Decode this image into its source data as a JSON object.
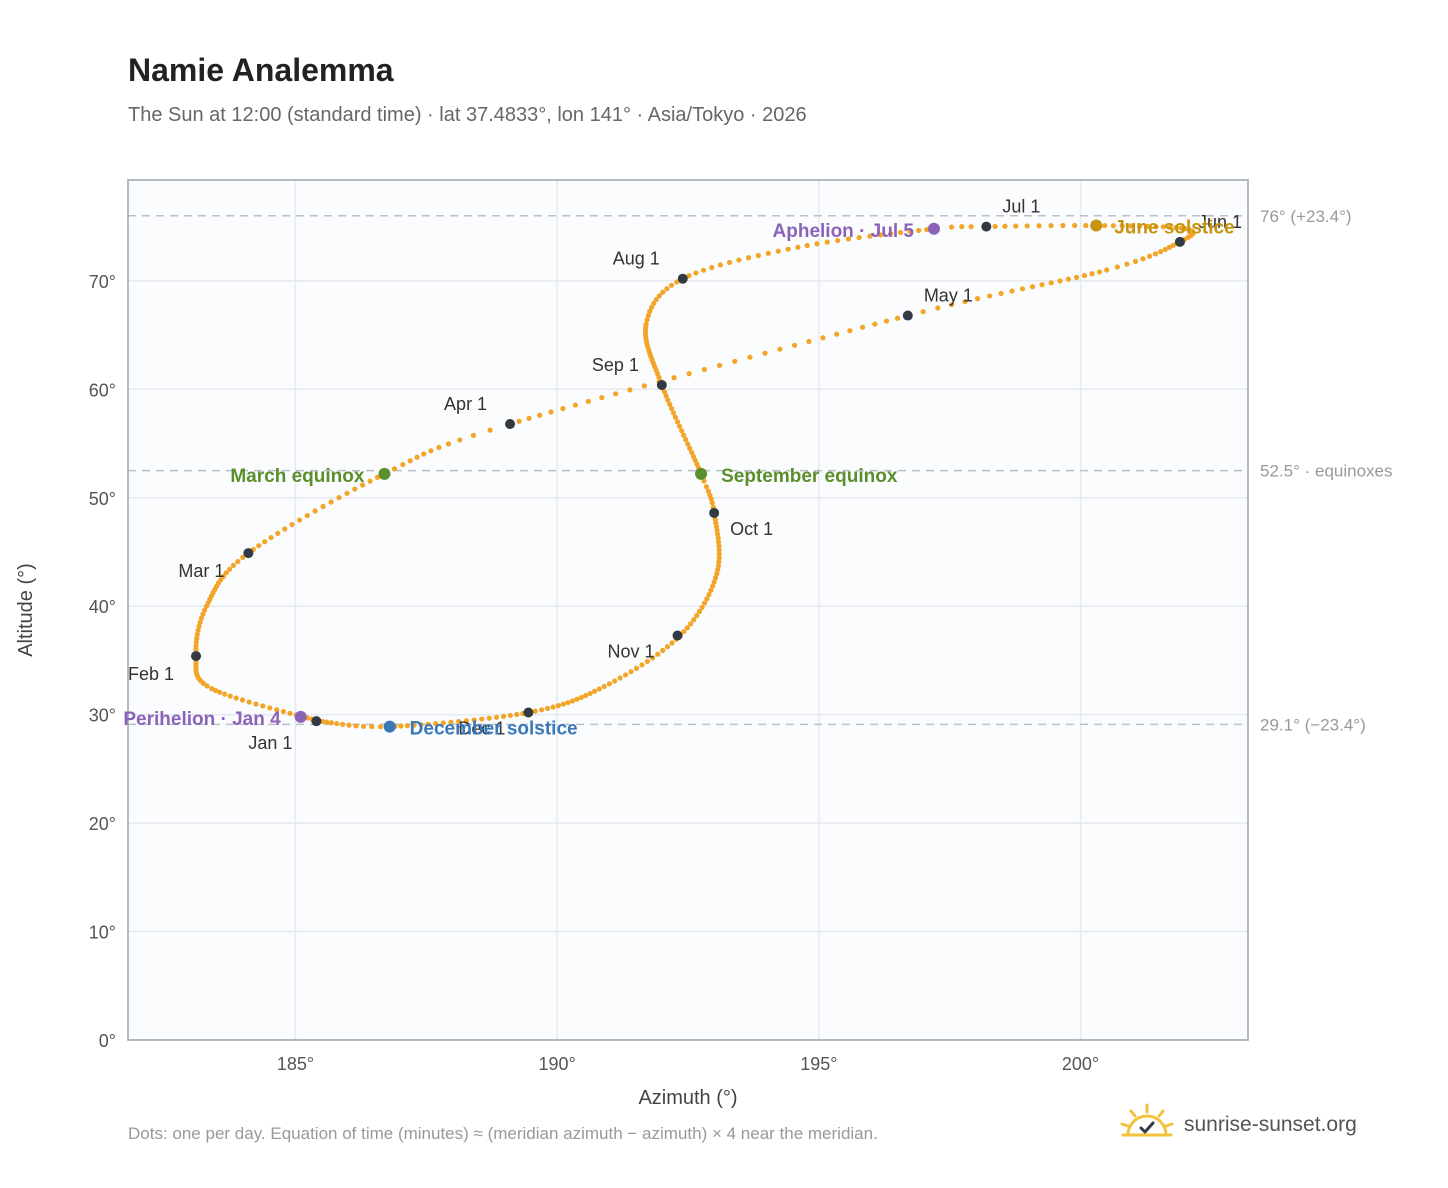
{
  "title": "Namie Analemma",
  "subtitle": "The Sun at 12:00 (standard time) · lat 37.4833°, lon 141° · Asia/Tokyo · 2026",
  "footnote": "Dots: one per day. Equation of time (minutes) ≈ (meridian azimuth − azimuth) × 4 near the meridian.",
  "brand": "sunrise-sunset.org",
  "chart_data": {
    "type": "scatter",
    "xlabel": "Azimuth (°)",
    "ylabel": "Altitude (°)",
    "xlim": [
      181.8,
      203.2
    ],
    "ylim": [
      0,
      79.3
    ],
    "xticks": [
      185,
      190,
      195,
      200
    ],
    "yticks": [
      0,
      10,
      20,
      30,
      40,
      50,
      60,
      70
    ],
    "grid": true,
    "reference_lines": [
      {
        "y": 76.0,
        "label": "76° (+23.4°)"
      },
      {
        "y": 52.5,
        "label": "52.5° · equinoxes"
      },
      {
        "y": 29.1,
        "label": "29.1° (−23.4°)"
      }
    ],
    "path_keypoints": [
      {
        "day": 1,
        "az": 185.45,
        "alt": 29.4
      },
      {
        "day": 20,
        "az": 183.4,
        "alt": 32.4
      },
      {
        "day": 32,
        "az": 183.1,
        "alt": 35.4
      },
      {
        "day": 45,
        "az": 183.3,
        "alt": 40.0
      },
      {
        "day": 60,
        "az": 184.1,
        "alt": 44.9
      },
      {
        "day": 79,
        "az": 186.7,
        "alt": 52.2
      },
      {
        "day": 91,
        "az": 189.1,
        "alt": 56.8
      },
      {
        "day": 121,
        "az": 196.7,
        "alt": 66.8
      },
      {
        "day": 140,
        "az": 200.5,
        "alt": 71.0
      },
      {
        "day": 152,
        "az": 201.9,
        "alt": 73.6
      },
      {
        "day": 160,
        "az": 202.0,
        "alt": 74.8
      },
      {
        "day": 172,
        "az": 200.3,
        "alt": 75.1
      },
      {
        "day": 182,
        "az": 198.2,
        "alt": 75.0
      },
      {
        "day": 186,
        "az": 197.2,
        "alt": 74.8
      },
      {
        "day": 200,
        "az": 194.6,
        "alt": 73.1
      },
      {
        "day": 213,
        "az": 192.4,
        "alt": 70.2
      },
      {
        "day": 225,
        "az": 191.7,
        "alt": 66.0
      },
      {
        "day": 244,
        "az": 192.0,
        "alt": 60.4
      },
      {
        "day": 266,
        "az": 192.75,
        "alt": 52.2
      },
      {
        "day": 274,
        "az": 193.0,
        "alt": 48.6
      },
      {
        "day": 290,
        "az": 193.05,
        "alt": 43.0
      },
      {
        "day": 305,
        "az": 192.35,
        "alt": 37.3
      },
      {
        "day": 320,
        "az": 190.9,
        "alt": 32.6
      },
      {
        "day": 335,
        "az": 189.45,
        "alt": 30.2
      },
      {
        "day": 355,
        "az": 186.8,
        "alt": 28.9
      },
      {
        "day": 366,
        "az": 185.45,
        "alt": 29.4
      }
    ],
    "month_markers": [
      {
        "label": "Jan 1",
        "az": 185.4,
        "alt": 29.4,
        "dx": -68,
        "dy": 28
      },
      {
        "label": "Feb 1",
        "az": 183.1,
        "alt": 35.4,
        "dx": -68,
        "dy": 24
      },
      {
        "label": "Mar 1",
        "az": 184.1,
        "alt": 44.9,
        "dx": -70,
        "dy": 24
      },
      {
        "label": "Apr 1",
        "az": 189.1,
        "alt": 56.8,
        "dx": -66,
        "dy": -14
      },
      {
        "label": "May 1",
        "az": 196.7,
        "alt": 66.8,
        "dx": 16,
        "dy": -14
      },
      {
        "label": "Jun 1",
        "az": 201.9,
        "alt": 73.6,
        "dx": 18,
        "dy": -14
      },
      {
        "label": "Jul 1",
        "az": 198.2,
        "alt": 75.0,
        "dx": 16,
        "dy": -14
      },
      {
        "label": "Aug 1",
        "az": 192.4,
        "alt": 70.2,
        "dx": -70,
        "dy": -14
      },
      {
        "label": "Sep 1",
        "az": 192.0,
        "alt": 60.4,
        "dx": -70,
        "dy": -14
      },
      {
        "label": "Oct 1",
        "az": 193.0,
        "alt": 48.6,
        "dx": 16,
        "dy": 22
      },
      {
        "label": "Nov 1",
        "az": 192.3,
        "alt": 37.3,
        "dx": -70,
        "dy": 22
      },
      {
        "label": "Dec 1",
        "az": 189.45,
        "alt": 30.2,
        "dx": -70,
        "dy": 22
      }
    ],
    "events": [
      {
        "label": "March equinox",
        "az": 186.7,
        "alt": 52.2,
        "color": "#5a8f2b",
        "anchor": "end",
        "dx": -20,
        "dy": 8
      },
      {
        "label": "September equinox",
        "az": 192.75,
        "alt": 52.2,
        "color": "#5a8f2b",
        "anchor": "start",
        "dx": 20,
        "dy": 8
      },
      {
        "label": "June solstice",
        "az": 200.3,
        "alt": 75.1,
        "color": "#c8940e",
        "anchor": "start",
        "dx": 18,
        "dy": 8
      },
      {
        "label": "December solstice",
        "az": 186.8,
        "alt": 28.9,
        "color": "#3a78b8",
        "anchor": "start",
        "dx": 20,
        "dy": 8
      },
      {
        "label": "Aphelion · Jul 5",
        "az": 197.2,
        "alt": 74.8,
        "color": "#8b63b8",
        "anchor": "end",
        "dx": -20,
        "dy": 8
      },
      {
        "label": "Perihelion · Jan 4",
        "az": 185.1,
        "alt": 29.8,
        "color": "#8b63b8",
        "anchor": "end",
        "dx": -20,
        "dy": 8
      }
    ],
    "colors": {
      "path": "#f2a527",
      "marker": "#333a44",
      "refline": "#b9c0c9",
      "grid": "#e6e9ee",
      "frame": "#9aa3ae",
      "plot_bg": "#fafcfe"
    }
  }
}
